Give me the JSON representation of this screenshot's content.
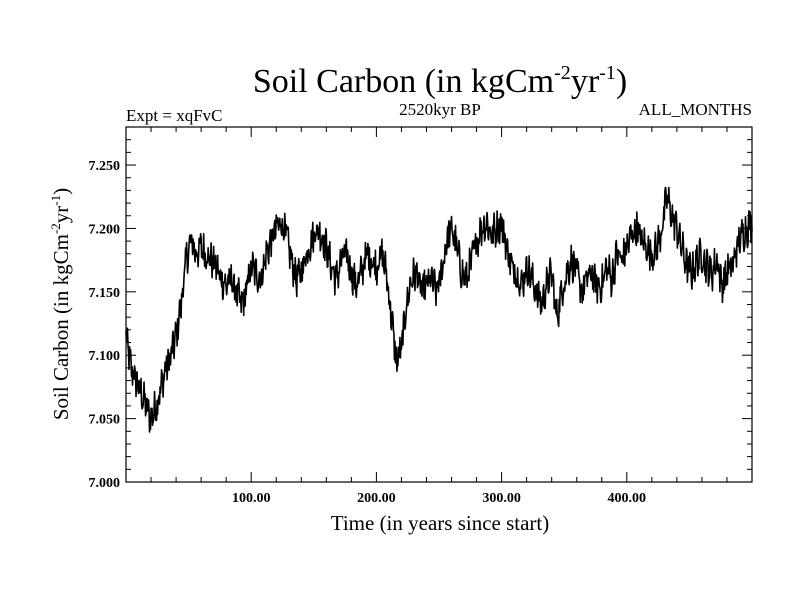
{
  "chart_data": {
    "type": "line",
    "title": {
      "prefix": "Soil Carbon (in kgCm",
      "sup1": "-2",
      "mid": "yr",
      "sup2": "-1",
      "suffix": ")"
    },
    "subtitle_left": "Expt = xqFvC",
    "subtitle_center": "2520kyr BP",
    "subtitle_right": "ALL_MONTHS",
    "xlabel": "Time (in years since start)",
    "ylabel": {
      "prefix": "Soil Carbon (in kgCm",
      "sup1": "-2",
      "mid": "yr",
      "sup2": "-1",
      "suffix": ")"
    },
    "xlim": [
      0,
      500
    ],
    "ylim": [
      7.0,
      7.28
    ],
    "xticks": [
      {
        "value": 100,
        "label": "100.00"
      },
      {
        "value": 200,
        "label": "200.00"
      },
      {
        "value": 300,
        "label": "300.00"
      },
      {
        "value": 400,
        "label": "400.00"
      }
    ],
    "yticks": [
      {
        "value": 7.0,
        "label": "7.000"
      },
      {
        "value": 7.05,
        "label": "7.050"
      },
      {
        "value": 7.1,
        "label": "7.100"
      },
      {
        "value": 7.15,
        "label": "7.150"
      },
      {
        "value": 7.2,
        "label": "7.200"
      },
      {
        "value": 7.25,
        "label": "7.250"
      }
    ],
    "series": [
      {
        "name": "Soil Carbon",
        "color": "#000000",
        "band": 0.012,
        "x": [
          0,
          4,
          8,
          12,
          16,
          20,
          24,
          28,
          32,
          36,
          40,
          44,
          48,
          52,
          56,
          60,
          64,
          68,
          72,
          76,
          80,
          84,
          88,
          92,
          96,
          100,
          104,
          108,
          112,
          116,
          120,
          124,
          128,
          132,
          136,
          140,
          144,
          148,
          152,
          156,
          160,
          164,
          168,
          172,
          176,
          180,
          184,
          188,
          192,
          196,
          200,
          204,
          208,
          212,
          216,
          220,
          224,
          228,
          232,
          236,
          240,
          244,
          248,
          252,
          256,
          260,
          264,
          268,
          272,
          276,
          280,
          284,
          288,
          292,
          296,
          300,
          304,
          308,
          312,
          316,
          320,
          324,
          328,
          332,
          336,
          340,
          344,
          348,
          352,
          356,
          360,
          364,
          368,
          372,
          376,
          380,
          384,
          388,
          392,
          396,
          400,
          404,
          408,
          412,
          416,
          420,
          424,
          428,
          432,
          436,
          440,
          444,
          448,
          452,
          456,
          460,
          464,
          468,
          472,
          476,
          480,
          484,
          488,
          492,
          496,
          500
        ],
        "y": [
          7.115,
          7.09,
          7.08,
          7.07,
          7.06,
          7.05,
          7.06,
          7.075,
          7.09,
          7.1,
          7.115,
          7.14,
          7.175,
          7.19,
          7.18,
          7.185,
          7.18,
          7.175,
          7.17,
          7.16,
          7.155,
          7.16,
          7.15,
          7.14,
          7.15,
          7.17,
          7.165,
          7.16,
          7.18,
          7.19,
          7.2,
          7.205,
          7.195,
          7.175,
          7.16,
          7.165,
          7.18,
          7.19,
          7.2,
          7.195,
          7.185,
          7.17,
          7.16,
          7.175,
          7.18,
          7.165,
          7.155,
          7.165,
          7.18,
          7.175,
          7.17,
          7.18,
          7.165,
          7.13,
          7.095,
          7.105,
          7.14,
          7.16,
          7.165,
          7.15,
          7.155,
          7.16,
          7.15,
          7.165,
          7.19,
          7.2,
          7.185,
          7.165,
          7.16,
          7.175,
          7.19,
          7.2,
          7.205,
          7.195,
          7.2,
          7.205,
          7.185,
          7.17,
          7.165,
          7.155,
          7.17,
          7.16,
          7.15,
          7.14,
          7.155,
          7.165,
          7.13,
          7.15,
          7.165,
          7.175,
          7.165,
          7.15,
          7.16,
          7.165,
          7.155,
          7.155,
          7.17,
          7.16,
          7.18,
          7.175,
          7.185,
          7.195,
          7.2,
          7.19,
          7.185,
          7.18,
          7.185,
          7.2,
          7.225,
          7.21,
          7.2,
          7.185,
          7.17,
          7.165,
          7.175,
          7.18,
          7.17,
          7.165,
          7.175,
          7.155,
          7.165,
          7.17,
          7.185,
          7.195,
          7.2,
          7.205
        ]
      }
    ]
  }
}
